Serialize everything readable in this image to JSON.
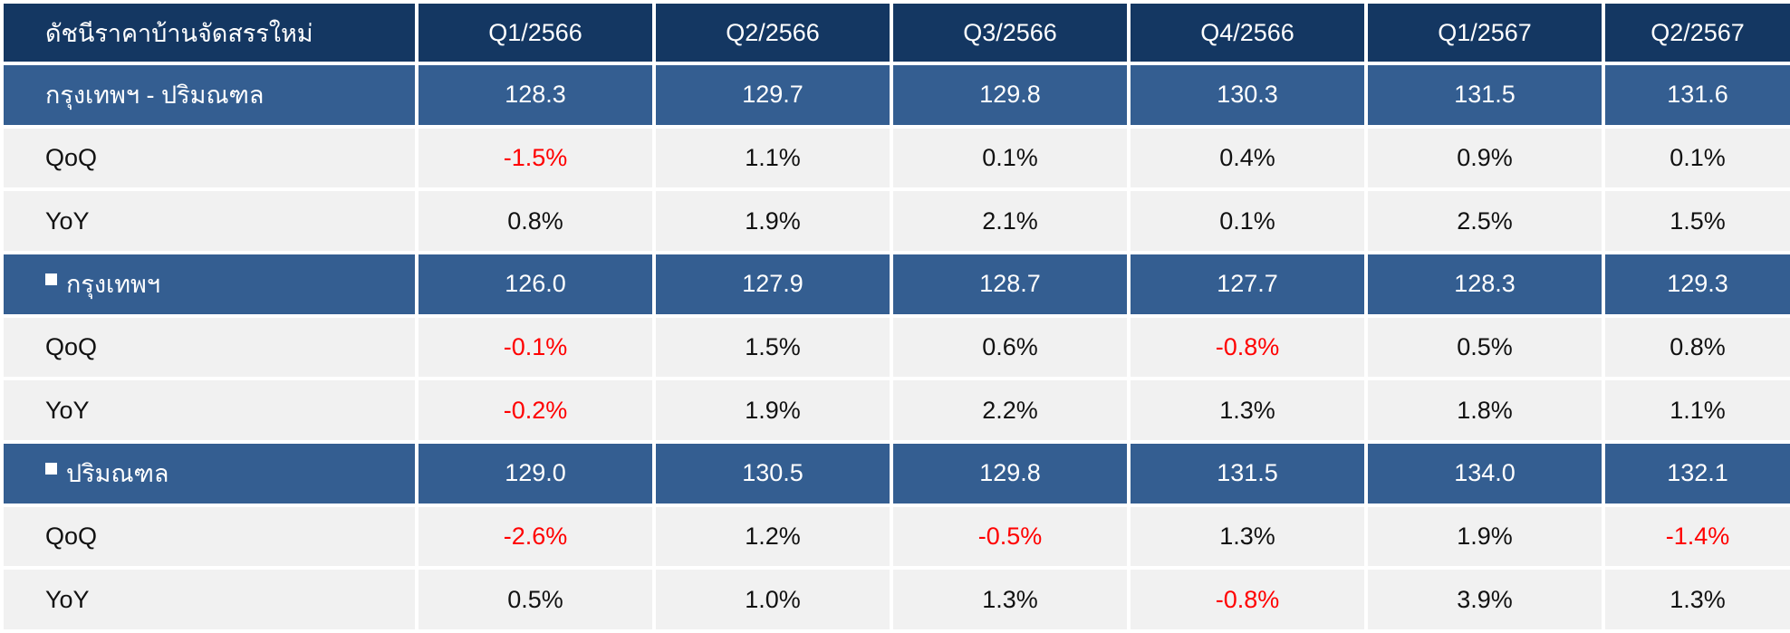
{
  "chart_data": {
    "type": "table",
    "corner_label": "ดัชนีราคาบ้านจัดสรรใหม่",
    "columns": [
      "Q1/2566",
      "Q2/2566",
      "Q3/2566",
      "Q4/2566",
      "Q1/2567",
      "Q2/2567"
    ],
    "negative_color": "#ff0000",
    "header_color": "#143762",
    "region_row_color": "#345e91",
    "metric_row_color": "#f1f1f1",
    "rows": [
      {
        "kind": "region",
        "bullet": false,
        "label": "กรุงเทพฯ - ปริมณฑล",
        "values": [
          "128.3",
          "129.7",
          "129.8",
          "130.3",
          "131.5",
          "131.6"
        ]
      },
      {
        "kind": "metric",
        "label": "QoQ",
        "values": [
          "-1.5%",
          "1.1%",
          "0.1%",
          "0.4%",
          "0.9%",
          "0.1%"
        ]
      },
      {
        "kind": "metric",
        "label": "YoY",
        "values": [
          "0.8%",
          "1.9%",
          "2.1%",
          "0.1%",
          "2.5%",
          "1.5%"
        ]
      },
      {
        "kind": "region",
        "bullet": true,
        "label": "กรุงเทพฯ",
        "values": [
          "126.0",
          "127.9",
          "128.7",
          "127.7",
          "128.3",
          "129.3"
        ]
      },
      {
        "kind": "metric",
        "label": "QoQ",
        "values": [
          "-0.1%",
          "1.5%",
          "0.6%",
          "-0.8%",
          "0.5%",
          "0.8%"
        ]
      },
      {
        "kind": "metric",
        "label": "YoY",
        "values": [
          "-0.2%",
          "1.9%",
          "2.2%",
          "1.3%",
          "1.8%",
          "1.1%"
        ]
      },
      {
        "kind": "region",
        "bullet": true,
        "label": "ปริมณฑล",
        "values": [
          "129.0",
          "130.5",
          "129.8",
          "131.5",
          "134.0",
          "132.1"
        ]
      },
      {
        "kind": "metric",
        "label": "QoQ",
        "values": [
          "-2.6%",
          "1.2%",
          "-0.5%",
          "1.3%",
          "1.9%",
          "-1.4%"
        ]
      },
      {
        "kind": "metric",
        "label": "YoY",
        "values": [
          "0.5%",
          "1.0%",
          "1.3%",
          "-0.8%",
          "3.9%",
          "1.3%"
        ]
      }
    ]
  }
}
